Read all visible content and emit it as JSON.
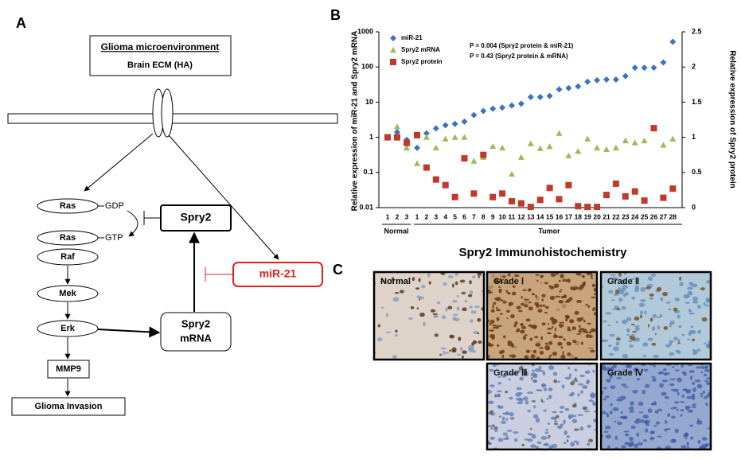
{
  "panel_labels": [
    "A",
    "B",
    "C"
  ],
  "diagram": {
    "environment_title": "Glioma microenvironment",
    "environment_subtitle": "Brain ECM (HA)",
    "nodes": {
      "ras_gdp": "Ras",
      "gdp": "GDP",
      "spry2": "Spry2",
      "ras_gtp": "Ras",
      "gtp": "GTP",
      "raf": "Raf",
      "mek": "Mek",
      "mir21": "miR-21",
      "erk": "Erk",
      "spry2_mrna": [
        "Spry2",
        "mRNA"
      ],
      "mmp9": "MMP9",
      "invasion": "Glioma Invasion"
    }
  },
  "chart_data": {
    "type": "scatter",
    "y_label": "Relative expression of miR-21 and Spry2 mRNA",
    "y2_label": "Relative expression of Spry2 protein",
    "annotations": [
      "P = 0.004  (Spry2 protein & miR-21)",
      "P = 0.43  (Spry2 protein & mRNA)"
    ],
    "groups": [
      "Normal",
      "Tumor"
    ],
    "categories": [
      "1",
      "2",
      "3",
      "1",
      "2",
      "3",
      "4",
      "5",
      "6",
      "7",
      "8",
      "9",
      "10",
      "11",
      "12",
      "13",
      "14",
      "15",
      "16",
      "17",
      "18",
      "19",
      "20",
      "21",
      "22",
      "23",
      "24",
      "25",
      "26",
      "27",
      "28"
    ],
    "ylog": true,
    "ylim": [
      0.01,
      1000
    ],
    "yticks": [
      0.01,
      0.1,
      1,
      10,
      100,
      1000
    ],
    "y2lim": [
      0,
      2.5
    ],
    "y2ticks": [
      0,
      0.5,
      1,
      1.5,
      2,
      2.5
    ],
    "series": [
      {
        "name": "miR-21",
        "color": "#3d72c2",
        "marker": "diamond",
        "values": [
          1,
          1.4,
          0.85,
          0.5,
          1.3,
          1.8,
          2.2,
          2.4,
          2.8,
          4.3,
          5.6,
          6.5,
          7,
          8,
          9,
          14,
          14,
          15,
          23,
          25,
          28,
          38,
          42,
          44,
          44,
          55,
          95,
          95,
          95,
          135,
          520
        ]
      },
      {
        "name": "Spry2 mRNA",
        "color": "#9bbb59",
        "marker": "triangle",
        "values": [
          1,
          2,
          0.5,
          0.18,
          1,
          0.5,
          0.9,
          1,
          1,
          0.21,
          0.27,
          0.55,
          0.5,
          0.09,
          0.27,
          0.66,
          0.48,
          0.55,
          1.3,
          0.3,
          0.4,
          0.9,
          0.5,
          0.45,
          0.5,
          0.8,
          0.7,
          0.8,
          1.8,
          0.6,
          0.9
        ]
      },
      {
        "name": "Spry2 protein",
        "color": "#c0392b",
        "marker": "square",
        "axis": "y2",
        "values": [
          1,
          1,
          0.92,
          1.03,
          0.57,
          0.4,
          0.32,
          0.15,
          0.7,
          0.2,
          0.75,
          0.15,
          0.2,
          0.09,
          0.06,
          0.01,
          0.11,
          0.28,
          0.12,
          0.32,
          0.02,
          0.01,
          0.01,
          0.18,
          0.34,
          0.16,
          0.23,
          0.1,
          1.13,
          0.14,
          0.27
        ]
      }
    ]
  },
  "ihc": {
    "title": "Spry2 Immunohistochemistry",
    "panels": [
      "Normal",
      "Grade Ⅰ",
      "Grade Ⅱ",
      "Grade Ⅲ",
      "Grade Ⅳ"
    ]
  }
}
